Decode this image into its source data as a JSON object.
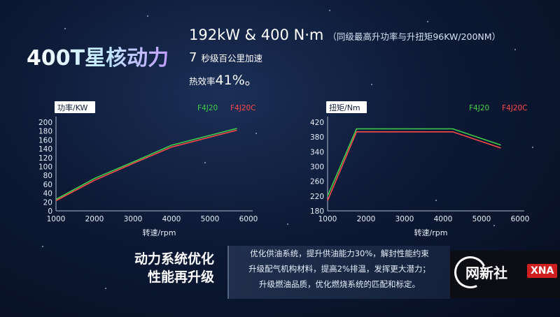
{
  "headline": "400T星核动力",
  "specs": {
    "line1_main": "192kW & 400 N·m",
    "line1_note": "（同级最高升功率与升扭矩96KW/200NM）",
    "line2_num": "7",
    "line2_text": "秒级百公里加速",
    "line3_label": "热效率",
    "line3_value": "41%。"
  },
  "chart_data": [
    {
      "type": "line",
      "ylabel": "功率/KW",
      "xlabel": "转速/rpm",
      "xlim": [
        1000,
        6000
      ],
      "ylim": [
        0,
        200
      ],
      "x_ticks": [
        1000,
        2000,
        3000,
        4000,
        5000,
        6000
      ],
      "y_ticks": [
        0,
        20,
        40,
        60,
        80,
        100,
        120,
        140,
        160,
        180,
        200
      ],
      "grid": false,
      "legend_position": "top-right",
      "series": [
        {
          "name": "F4J20",
          "color": "#3ecf4a",
          "points": [
            [
              1000,
              26
            ],
            [
              2000,
              73
            ],
            [
              3000,
              110
            ],
            [
              4000,
              148
            ],
            [
              5700,
              186
            ]
          ]
        },
        {
          "name": "F4J20C",
          "color": "#ff4a4a",
          "points": [
            [
              1000,
              23
            ],
            [
              2000,
              69
            ],
            [
              3000,
              107
            ],
            [
              4000,
              144
            ],
            [
              5700,
              182
            ]
          ]
        }
      ]
    },
    {
      "type": "line",
      "ylabel": "扭矩/Nm",
      "xlabel": "转速/rpm",
      "xlim": [
        1000,
        6000
      ],
      "ylim": [
        180,
        420
      ],
      "x_ticks": [
        1000,
        2000,
        3000,
        4000,
        5000,
        6000
      ],
      "y_ticks": [
        180,
        220,
        260,
        300,
        340,
        380,
        420
      ],
      "grid": false,
      "legend_position": "top-right",
      "series": [
        {
          "name": "F4J20",
          "color": "#3ecf4a",
          "points": [
            [
              1000,
              220
            ],
            [
              1750,
              402
            ],
            [
              4250,
              402
            ],
            [
              5500,
              358
            ]
          ]
        },
        {
          "name": "F4J20C",
          "color": "#ff4a4a",
          "points": [
            [
              1000,
              208
            ],
            [
              1750,
              394
            ],
            [
              4250,
              394
            ],
            [
              5500,
              350
            ]
          ]
        }
      ]
    }
  ],
  "bottom": {
    "title_line1": "动力系统优化",
    "title_line2": "性能再升级",
    "desc_line1": "优化供油系统，提升供油能力30%，解封性能约束",
    "desc_line2": "升级配气机构材料，提高2%排温，发挥更大潜力；",
    "desc_line3": "升级燃油品质，优化燃烧系统的匹配和标定。"
  },
  "watermark": {
    "cn": "网新社",
    "en": "XNA"
  }
}
